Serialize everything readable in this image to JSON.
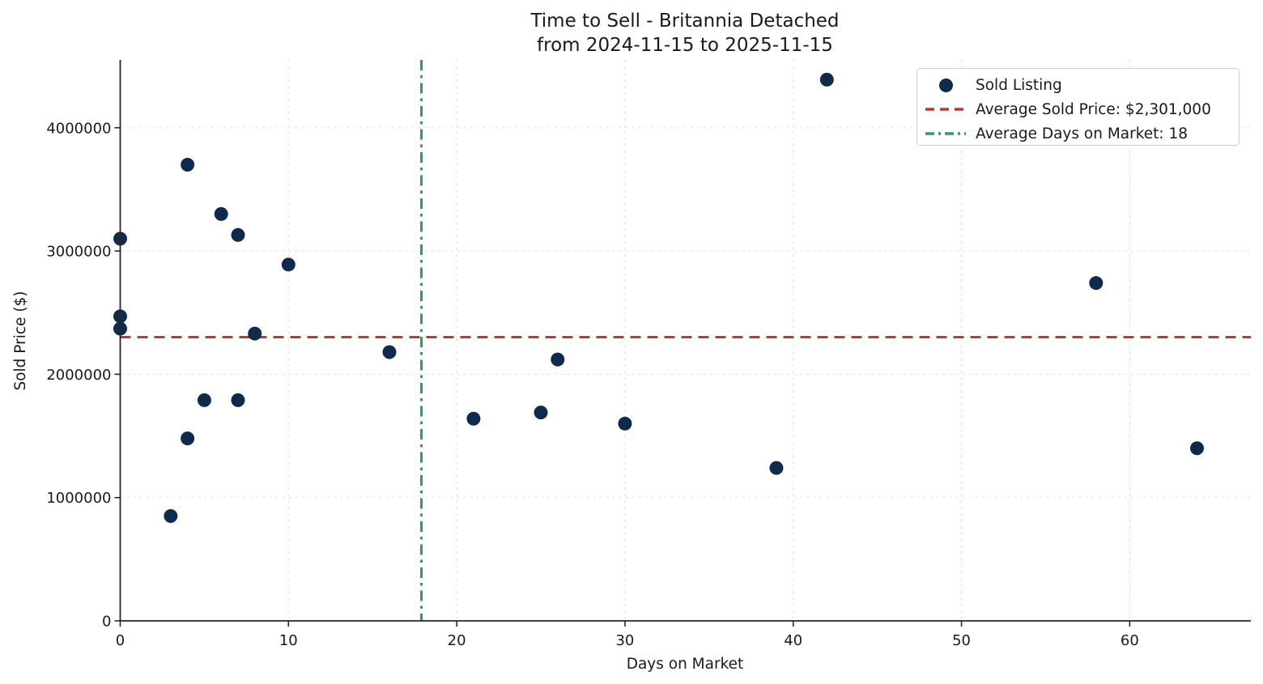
{
  "header": {
    "title_line1": "Time to Sell - Britannia Detached",
    "title_line2": "from 2024-11-15 to 2025-11-15"
  },
  "chart_data": {
    "type": "scatter",
    "title": "Time to Sell - Britannia Detached from 2024-11-15 to 2025-11-15",
    "xlabel": "Days on Market",
    "ylabel": "Sold Price ($)",
    "xlim": [
      0,
      67.2
    ],
    "ylim": [
      0,
      4550000
    ],
    "xticks": [
      0,
      10,
      20,
      30,
      40,
      50,
      60
    ],
    "yticks": [
      0,
      1000000,
      2000000,
      3000000,
      4000000
    ],
    "grid": true,
    "legend_position": "upper right",
    "series": [
      {
        "name": "Sold Listing",
        "type": "scatter",
        "color": "#0f2a4a",
        "points": [
          [
            0,
            3100000
          ],
          [
            0,
            2470000
          ],
          [
            0,
            2370000
          ],
          [
            3,
            850000
          ],
          [
            4,
            3700000
          ],
          [
            4,
            1480000
          ],
          [
            5,
            1790000
          ],
          [
            6,
            3300000
          ],
          [
            7,
            3130000
          ],
          [
            7,
            1790000
          ],
          [
            8,
            2330000
          ],
          [
            10,
            2890000
          ],
          [
            16,
            2180000
          ],
          [
            21,
            1640000
          ],
          [
            25,
            1690000
          ],
          [
            26,
            2120000
          ],
          [
            30,
            1600000
          ],
          [
            39,
            1240000
          ],
          [
            42,
            4390000
          ],
          [
            58,
            2740000
          ],
          [
            64,
            1400000
          ]
        ]
      }
    ],
    "reference_lines": [
      {
        "label": "Average Sold Price: $2,301,000",
        "orientation": "horizontal",
        "value": 2301000,
        "color": "#b83c2c",
        "style": "dashed"
      },
      {
        "label": "Average Days on Market: 18",
        "orientation": "vertical",
        "value": 17.9,
        "color": "#2aa05a",
        "style": "dashdot"
      }
    ],
    "colors": {
      "marker": "#0f2a4a",
      "avg_price_line": "#b83c2c",
      "avg_days_line": "#2aa05a",
      "gridline": "#dedede",
      "spine": "#262626",
      "text": "#1a1a1a"
    }
  }
}
